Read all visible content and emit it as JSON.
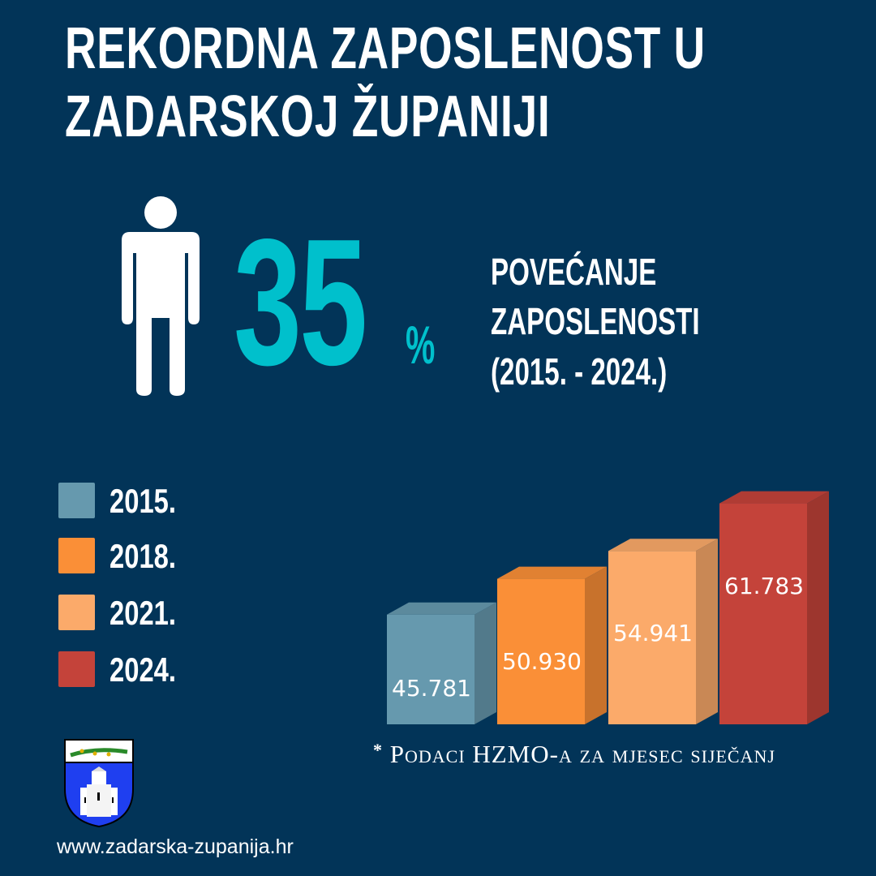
{
  "title": {
    "line1": "REKORDNA ZAPOSLENOST U",
    "line2": "ZADARSKOJ ŽUPANIJI"
  },
  "headline": {
    "value": "35",
    "unit": "%",
    "icon": "person-icon",
    "text": [
      "POVEĆANJE",
      "ZAPOSLENOSTI",
      "(2015. - 2024.)"
    ]
  },
  "chart_data": {
    "type": "bar",
    "style": "3d",
    "categories": [
      "2015.",
      "2018.",
      "2021.",
      "2024."
    ],
    "values": [
      45781,
      50930,
      54941,
      61783
    ],
    "data_labels": [
      "45.781",
      "50.930",
      "54.941",
      "61.783"
    ],
    "colors": [
      "#6699ae",
      "#fa8f37",
      "#fbaa6a",
      "#c4433a"
    ],
    "legend": [
      "2015.",
      "2018.",
      "2021.",
      "2024."
    ],
    "legend_placement": "left",
    "grid": false,
    "ylim": [
      30000,
      65000
    ]
  },
  "footnote": {
    "asterisk": "*",
    "text": "Podaci HZMO-a za mjesec siječanj"
  },
  "footer": {
    "url": "www.zadarska-zupanija.hr",
    "logo": "zadar-county-coat-of-arms"
  },
  "colors": {
    "background": "#023458",
    "accent": "#00c0cc"
  }
}
